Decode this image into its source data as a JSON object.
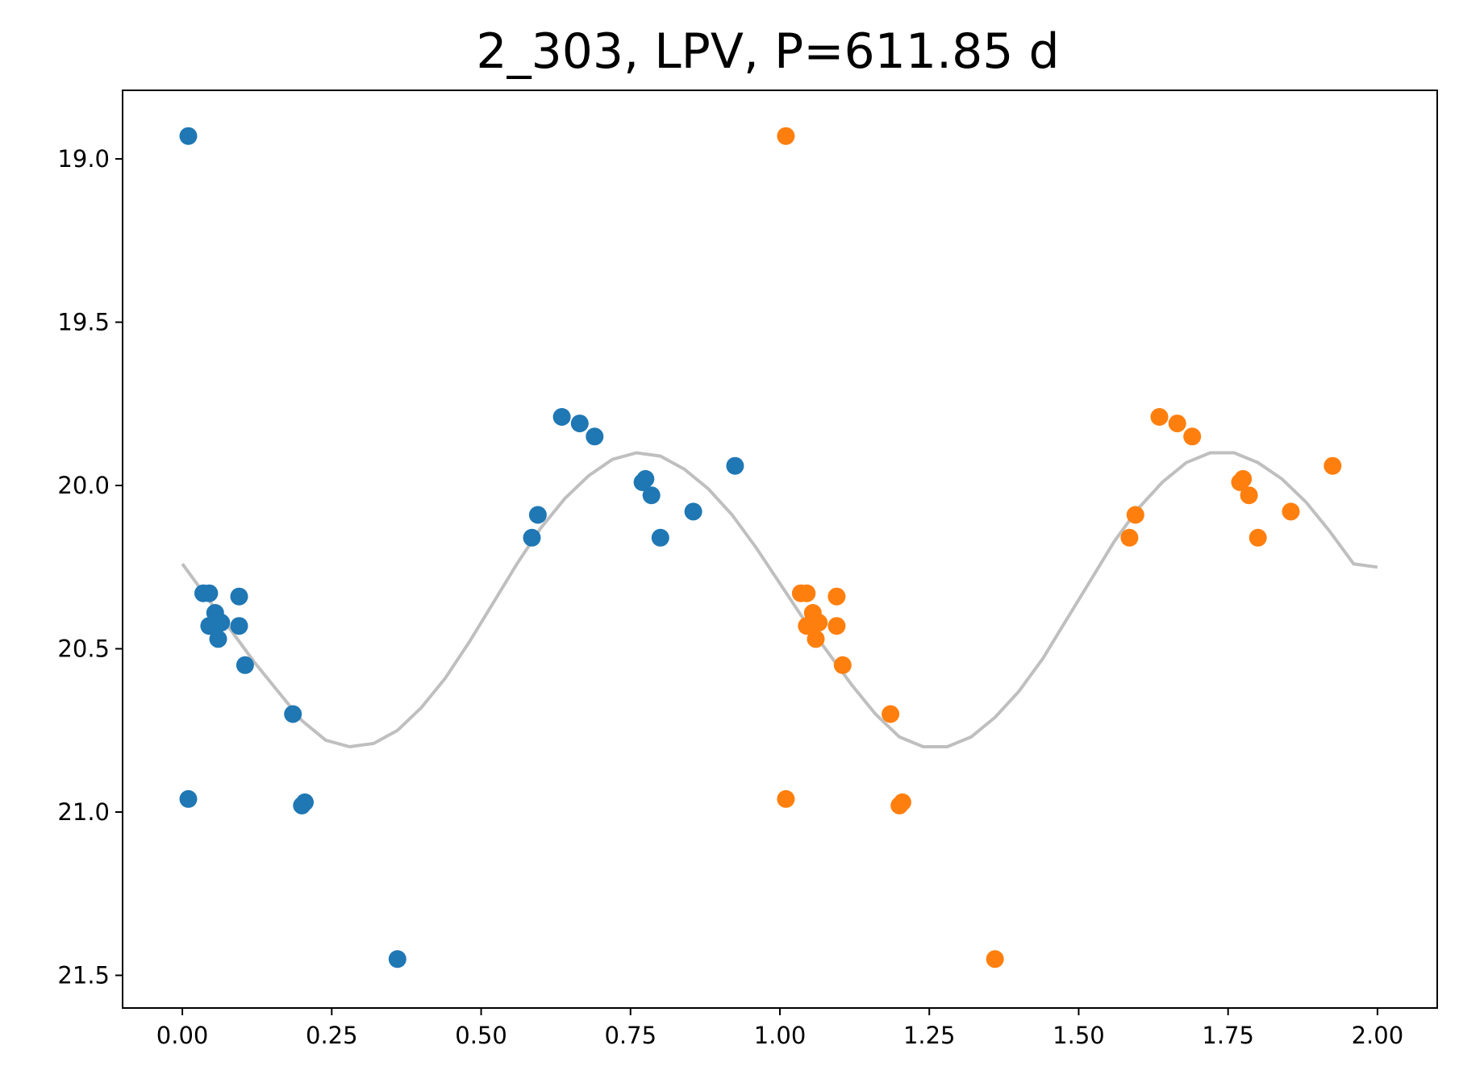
{
  "chart_data": {
    "type": "scatter",
    "title": "2_303, LPV, P=611.85 d",
    "xlabel": "",
    "ylabel": "",
    "xlim": [
      -0.1,
      2.1
    ],
    "ylim": [
      21.6,
      18.79
    ],
    "y_inverted": true,
    "grid": false,
    "x_ticks": [
      "0.00",
      "0.25",
      "0.50",
      "0.75",
      "1.00",
      "1.25",
      "1.50",
      "1.75",
      "2.00"
    ],
    "y_ticks": [
      "19.0",
      "19.5",
      "20.0",
      "20.5",
      "21.0",
      "21.5"
    ],
    "series": [
      {
        "color": "#1f77b4",
        "points": [
          [
            0.01,
            18.93
          ],
          [
            0.01,
            20.96
          ],
          [
            0.035,
            20.33
          ],
          [
            0.045,
            20.33
          ],
          [
            0.055,
            20.39
          ],
          [
            0.045,
            20.43
          ],
          [
            0.065,
            20.42
          ],
          [
            0.06,
            20.47
          ],
          [
            0.095,
            20.34
          ],
          [
            0.095,
            20.43
          ],
          [
            0.105,
            20.55
          ],
          [
            0.185,
            20.7
          ],
          [
            0.2,
            20.98
          ],
          [
            0.205,
            20.97
          ],
          [
            0.36,
            21.45
          ],
          [
            0.585,
            20.16
          ],
          [
            0.595,
            20.09
          ],
          [
            0.635,
            19.79
          ],
          [
            0.665,
            19.81
          ],
          [
            0.69,
            19.85
          ],
          [
            0.77,
            19.99
          ],
          [
            0.775,
            19.98
          ],
          [
            0.785,
            20.03
          ],
          [
            0.8,
            20.16
          ],
          [
            0.855,
            20.08
          ],
          [
            0.925,
            19.94
          ]
        ]
      },
      {
        "color": "#ff7f0e",
        "points": [
          [
            1.01,
            18.93
          ],
          [
            1.01,
            20.96
          ],
          [
            1.035,
            20.33
          ],
          [
            1.045,
            20.33
          ],
          [
            1.055,
            20.39
          ],
          [
            1.045,
            20.43
          ],
          [
            1.065,
            20.42
          ],
          [
            1.06,
            20.47
          ],
          [
            1.095,
            20.34
          ],
          [
            1.095,
            20.43
          ],
          [
            1.105,
            20.55
          ],
          [
            1.185,
            20.7
          ],
          [
            1.2,
            20.98
          ],
          [
            1.205,
            20.97
          ],
          [
            1.36,
            21.45
          ],
          [
            1.585,
            20.16
          ],
          [
            1.595,
            20.09
          ],
          [
            1.635,
            19.79
          ],
          [
            1.665,
            19.81
          ],
          [
            1.69,
            19.85
          ],
          [
            1.77,
            19.99
          ],
          [
            1.775,
            19.98
          ],
          [
            1.785,
            20.03
          ],
          [
            1.8,
            20.16
          ],
          [
            1.855,
            20.08
          ],
          [
            1.925,
            19.94
          ]
        ]
      }
    ],
    "model_curve": {
      "color": "#bfbfbf",
      "points": [
        [
          0.0,
          20.24
        ],
        [
          0.04,
          20.34
        ],
        [
          0.08,
          20.44
        ],
        [
          0.12,
          20.54
        ],
        [
          0.16,
          20.63
        ],
        [
          0.2,
          20.72
        ],
        [
          0.24,
          20.78
        ],
        [
          0.28,
          20.8
        ],
        [
          0.32,
          20.79
        ],
        [
          0.36,
          20.75
        ],
        [
          0.4,
          20.68
        ],
        [
          0.44,
          20.59
        ],
        [
          0.48,
          20.48
        ],
        [
          0.52,
          20.36
        ],
        [
          0.56,
          20.24
        ],
        [
          0.6,
          20.13
        ],
        [
          0.64,
          20.04
        ],
        [
          0.68,
          19.97
        ],
        [
          0.72,
          19.92
        ],
        [
          0.76,
          19.9
        ],
        [
          0.8,
          19.91
        ],
        [
          0.84,
          19.95
        ],
        [
          0.88,
          20.01
        ],
        [
          0.92,
          20.09
        ],
        [
          0.96,
          20.19
        ],
        [
          1.0,
          20.3
        ],
        [
          1.04,
          20.41
        ],
        [
          1.08,
          20.51
        ],
        [
          1.12,
          20.61
        ],
        [
          1.16,
          20.7
        ],
        [
          1.2,
          20.77
        ],
        [
          1.24,
          20.8
        ],
        [
          1.28,
          20.8
        ],
        [
          1.32,
          20.77
        ],
        [
          1.36,
          20.71
        ],
        [
          1.4,
          20.63
        ],
        [
          1.44,
          20.53
        ],
        [
          1.48,
          20.41
        ],
        [
          1.52,
          20.29
        ],
        [
          1.56,
          20.17
        ],
        [
          1.6,
          20.07
        ],
        [
          1.64,
          19.99
        ],
        [
          1.68,
          19.93
        ],
        [
          1.72,
          19.9
        ],
        [
          1.76,
          19.9
        ],
        [
          1.8,
          19.93
        ],
        [
          1.84,
          19.98
        ],
        [
          1.88,
          20.05
        ],
        [
          1.92,
          20.14
        ],
        [
          1.96,
          20.24
        ],
        [
          2.0,
          20.25
        ]
      ]
    }
  }
}
